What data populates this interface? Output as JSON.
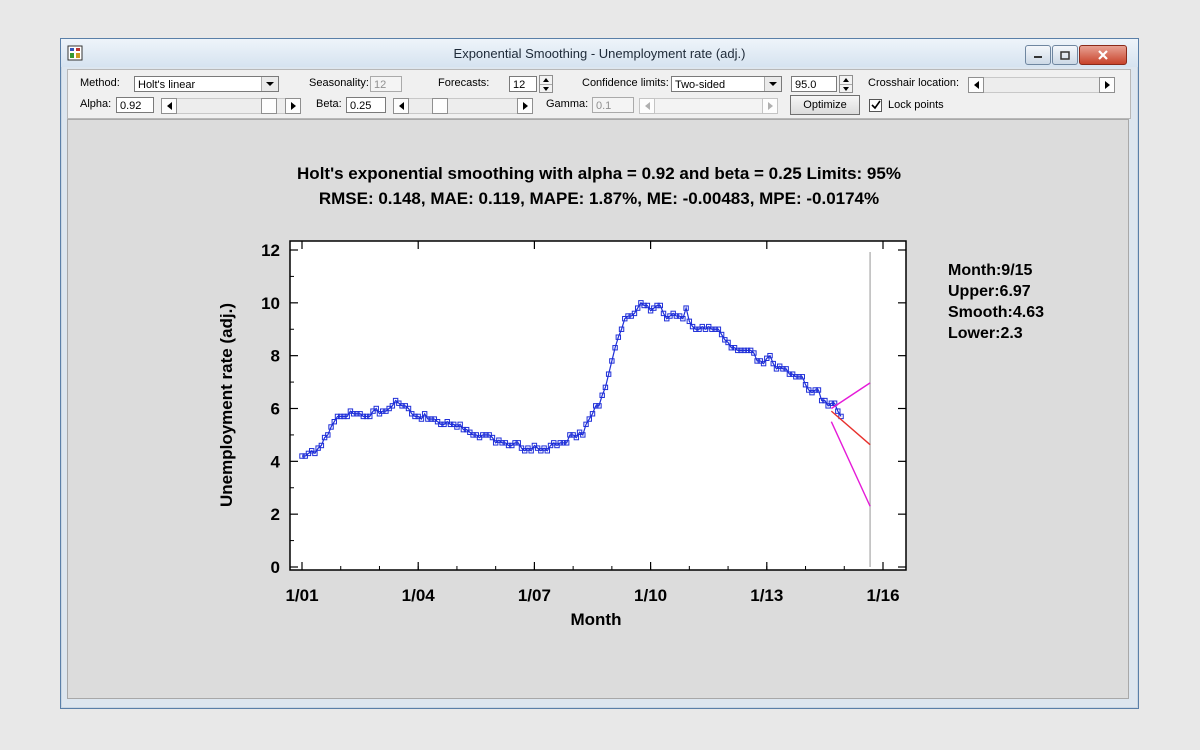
{
  "window": {
    "title": "Exponential Smoothing - Unemployment rate (adj.)"
  },
  "toolbar": {
    "method_label": "Method:",
    "method_value": "Holt's linear",
    "seasonality_label": "Seasonality:",
    "seasonality_value": "12",
    "forecasts_label": "Forecasts:",
    "forecasts_value": "12",
    "confidence_label": "Confidence limits:",
    "confidence_value": "Two-sided",
    "confidence_level": "95.0",
    "crosshair_label": "Crosshair location:",
    "alpha_label": "Alpha:",
    "alpha_value": "0.92",
    "beta_label": "Beta:",
    "beta_value": "0.25",
    "gamma_label": "Gamma:",
    "gamma_value": "0.1",
    "optimize_label": "Optimize",
    "lock_points_label": "Lock points",
    "lock_points_checked": true
  },
  "chart_header": {
    "line1": "Holt's exponential smoothing with alpha = 0.92 and beta = 0.25 Limits: 95%",
    "line2": "RMSE: 0.148, MAE: 0.119, MAPE: 1.87%, ME: -0.00483, MPE: -0.0174%"
  },
  "crosshair_info": {
    "month": "Month:9/15",
    "upper": "Upper:6.97",
    "smooth": "Smooth:4.63",
    "lower": "Lower:2.3"
  },
  "colors": {
    "data": "#1f2fd8",
    "forecast": "#e8302c",
    "limits": "#e51ad8",
    "crosshair": "#b8b8b8"
  },
  "chart_data": {
    "type": "line",
    "xlabel": "Month",
    "ylabel": "Unemployment rate (adj.)",
    "ylim": [
      0,
      12
    ],
    "y_ticks": [
      0,
      2,
      4,
      6,
      8,
      10,
      12
    ],
    "x_ticks": [
      "1/01",
      "1/04",
      "1/07",
      "1/10",
      "1/13",
      "1/16"
    ],
    "grid": false,
    "series": [
      {
        "start": "1/01",
        "frequency": "monthly",
        "values": [
          4.2,
          4.2,
          4.3,
          4.4,
          4.3,
          4.5,
          4.6,
          4.9,
          5.0,
          5.3,
          5.5,
          5.7,
          5.7,
          5.7,
          5.7,
          5.9,
          5.8,
          5.8,
          5.8,
          5.7,
          5.7,
          5.7,
          5.9,
          6.0,
          5.8,
          5.9,
          5.9,
          6.0,
          6.1,
          6.3,
          6.2,
          6.1,
          6.1,
          6.0,
          5.8,
          5.7,
          5.7,
          5.6,
          5.8,
          5.6,
          5.6,
          5.6,
          5.5,
          5.4,
          5.4,
          5.5,
          5.4,
          5.4,
          5.3,
          5.4,
          5.2,
          5.2,
          5.1,
          5.0,
          5.0,
          4.9,
          5.0,
          5.0,
          5.0,
          4.9,
          4.7,
          4.8,
          4.7,
          4.7,
          4.6,
          4.6,
          4.7,
          4.7,
          4.5,
          4.4,
          4.5,
          4.4,
          4.6,
          4.5,
          4.4,
          4.5,
          4.4,
          4.6,
          4.7,
          4.6,
          4.7,
          4.7,
          4.7,
          5.0,
          5.0,
          4.9,
          5.1,
          5.0,
          5.4,
          5.6,
          5.8,
          6.1,
          6.1,
          6.5,
          6.8,
          7.3,
          7.8,
          8.3,
          8.7,
          9.0,
          9.4,
          9.5,
          9.5,
          9.6,
          9.8,
          10.0,
          9.9,
          9.9,
          9.7,
          9.8,
          9.9,
          9.9,
          9.6,
          9.4,
          9.5,
          9.6,
          9.5,
          9.5,
          9.4,
          9.8,
          9.3,
          9.1,
          9.0,
          9.0,
          9.1,
          9.0,
          9.1,
          9.0,
          9.0,
          9.0,
          8.8,
          8.6,
          8.5,
          8.3,
          8.3,
          8.2,
          8.2,
          8.2,
          8.2,
          8.2,
          8.1,
          7.8,
          7.8,
          7.7,
          7.9,
          8.0,
          7.7,
          7.5,
          7.6,
          7.5,
          7.5,
          7.3,
          7.3,
          7.2,
          7.2,
          7.2,
          6.9,
          6.7,
          6.6,
          6.7,
          6.7,
          6.3,
          6.3,
          6.1,
          6.2,
          6.2,
          5.9,
          5.7
        ]
      },
      {
        "name": "Smooth",
        "start": "9/14",
        "values": [
          5.9,
          4.63
        ],
        "end": "9/15"
      },
      {
        "name": "Upper",
        "start": "9/14",
        "values": [
          6.0,
          6.97
        ],
        "end": "9/15"
      },
      {
        "name": "Lower",
        "start": "9/14",
        "values": [
          5.5,
          2.3
        ],
        "end": "9/15"
      }
    ],
    "crosshair_x": "9/15"
  }
}
